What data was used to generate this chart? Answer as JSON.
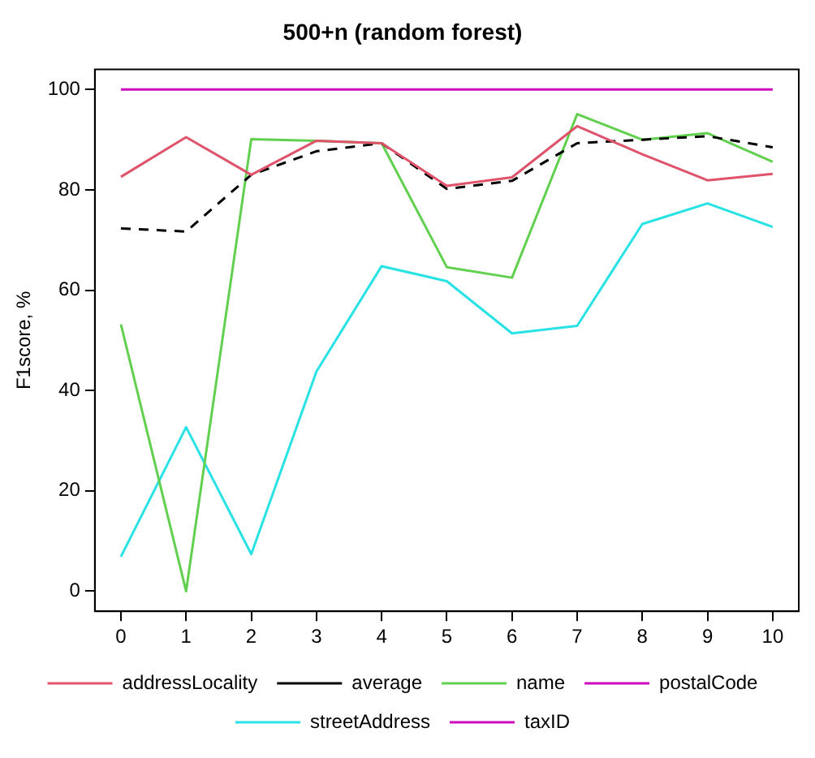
{
  "chart_data": {
    "type": "line",
    "title": "500+n (random forest)",
    "ylabel": "F1score, %",
    "x": [
      0,
      1,
      2,
      3,
      4,
      5,
      6,
      7,
      8,
      9,
      10
    ],
    "xlim": [
      -0.4,
      10.4
    ],
    "xticks": [
      0,
      1,
      2,
      3,
      4,
      5,
      6,
      7,
      8,
      9,
      10
    ],
    "ylim": [
      -4,
      104
    ],
    "yticks": [
      0,
      20,
      40,
      60,
      80,
      100
    ],
    "grid": false,
    "legend": "bottom",
    "marker": "none",
    "line_style": "solid",
    "series": [
      {
        "name": "addressLocality",
        "color": "#df536b",
        "values": [
          82.6,
          90.5,
          83,
          89.8,
          89.3,
          80.8,
          82.5,
          92.7,
          87.1,
          81.9,
          83.2
        ]
      },
      {
        "name": "average",
        "color": "#000000",
        "line_style": "dashed",
        "values": [
          72.3,
          71.7,
          83,
          87.7,
          89.3,
          80.2,
          81.8,
          89.3,
          90,
          90.7,
          88.5
        ]
      },
      {
        "name": "name",
        "color": "#61d04f",
        "values": [
          53.2,
          0,
          90.1,
          89.8,
          89.3,
          64.6,
          62.5,
          95.1,
          90,
          91.3,
          85.6
        ]
      },
      {
        "name": "postalCode",
        "color": "#cd0bbc",
        "values": [
          null,
          null,
          null,
          null,
          null,
          null,
          null,
          null,
          null,
          null,
          null
        ]
      },
      {
        "name": "streetAddress",
        "color": "#28e2e5",
        "values": [
          6.9,
          32.7,
          7.4,
          43.8,
          64.8,
          61.8,
          51.4,
          52.9,
          73.2,
          77.3,
          72.6
        ]
      },
      {
        "name": "taxID",
        "color": "#cd0bbc",
        "values": [
          100,
          100,
          100,
          100,
          100,
          100,
          100,
          100,
          100,
          100,
          100
        ]
      }
    ]
  }
}
